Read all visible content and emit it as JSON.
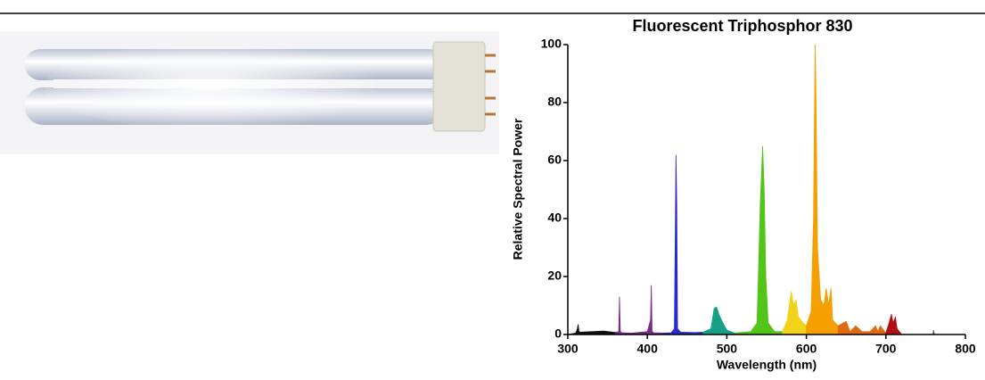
{
  "chart_data": {
    "type": "area",
    "title": "Fluorescent Triphosphor 830",
    "xlabel": "Wavelength (nm)",
    "ylabel": "Relative Spectral Power",
    "xlim": [
      300,
      800
    ],
    "ylim": [
      0,
      100
    ],
    "xticks": [
      300,
      400,
      500,
      600,
      700,
      800
    ],
    "yticks": [
      0,
      20,
      40,
      60,
      80,
      100
    ],
    "grid": false,
    "series": [
      {
        "color": "#111111",
        "x": [
          300,
          310,
          312,
          313,
          314,
          316,
          330,
          345,
          360
        ],
        "values": [
          0,
          0.5,
          2,
          3.5,
          1,
          0.8,
          1,
          1.2,
          0.7
        ]
      },
      {
        "color": "#7b2a8a",
        "x": [
          360,
          364,
          365,
          366,
          368,
          380,
          400,
          404,
          405,
          406,
          408,
          420
        ],
        "values": [
          0.7,
          1,
          13,
          1,
          0.6,
          0.5,
          1,
          5,
          17,
          1,
          0.6,
          0.5
        ]
      },
      {
        "color": "#2a2acc",
        "x": [
          420,
          430,
          434,
          435,
          436,
          437,
          438,
          442,
          460,
          470
        ],
        "values": [
          0.5,
          0.6,
          2,
          30,
          62,
          45,
          2,
          0.8,
          0.7,
          0.8
        ]
      },
      {
        "color": "#16a085",
        "x": [
          470,
          480,
          484,
          487,
          490,
          495,
          500,
          510
        ],
        "values": [
          0.8,
          2,
          9,
          9.5,
          7,
          4,
          1.5,
          0.5
        ]
      },
      {
        "color": "#52c41a",
        "x": [
          510,
          530,
          538,
          542,
          545,
          547,
          549,
          552,
          560,
          570
        ],
        "values": [
          0.5,
          1,
          4,
          45,
          65,
          50,
          20,
          4,
          1,
          1
        ]
      },
      {
        "color": "#f2d21b",
        "x": [
          570,
          576,
          579,
          581,
          584,
          587,
          590,
          596,
          600
        ],
        "values": [
          1,
          5,
          11,
          15,
          10,
          12,
          6,
          4,
          3
        ]
      },
      {
        "color": "#f5a000",
        "x": [
          600,
          606,
          609,
          611,
          612,
          614,
          618,
          622,
          625,
          628,
          631,
          633,
          640
        ],
        "values": [
          3,
          8,
          40,
          100,
          85,
          30,
          12,
          10,
          16,
          10,
          16,
          5,
          3
        ]
      },
      {
        "color": "#e06a10",
        "x": [
          640,
          650,
          655,
          662,
          670,
          680,
          687,
          690,
          693,
          700
        ],
        "values": [
          3,
          4.5,
          1,
          3,
          1,
          1,
          3,
          1,
          3,
          0.5
        ]
      },
      {
        "color": "#b01010",
        "x": [
          700,
          704,
          707,
          709,
          712,
          714,
          720
        ],
        "values": [
          0.5,
          4,
          7,
          4,
          6,
          2,
          0
        ]
      },
      {
        "color": "#555555",
        "x": [
          755,
          759,
          760,
          761,
          765
        ],
        "values": [
          0,
          0,
          1.5,
          0,
          0
        ]
      }
    ]
  }
}
